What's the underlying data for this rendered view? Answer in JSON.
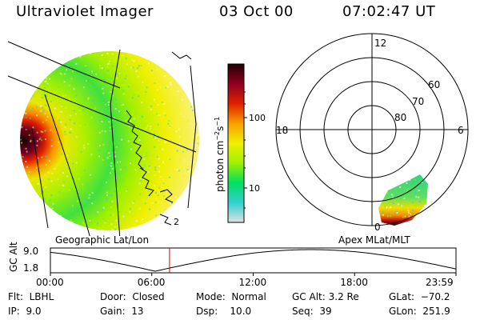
{
  "header": {
    "title": "Ultraviolet Imager",
    "date": "03 Oct 00",
    "time": "07:02:47 UT"
  },
  "colorbar": {
    "unit_label": "photon cm",
    "unit_exp1": "−2",
    "unit_s": "s",
    "unit_exp2": "−1",
    "ticks": [
      "100",
      "10"
    ],
    "colors": [
      "#e0e0e0",
      "#30d0d0",
      "#00e060",
      "#a0f000",
      "#f0f000",
      "#f8a000",
      "#e02000",
      "#900020",
      "#200000"
    ]
  },
  "polar": {
    "mlt_labels": [
      "12",
      "18",
      "6",
      "0"
    ],
    "lat_labels": [
      "60",
      "70",
      "80"
    ]
  },
  "coord_labels": {
    "left": "Geographic Lat/Lon",
    "right": "Apex MLat/MLT"
  },
  "timeline": {
    "axis_label": "GC Alt",
    "y_ticks": [
      "9.0",
      "1.8"
    ],
    "x_ticks": [
      "00:00",
      "06:00",
      "12:00",
      "18:00",
      "23:59"
    ],
    "marker_time_hours": 7.05
  },
  "footer": {
    "flt_label": "Flt:",
    "flt_value": "LBHL",
    "ip_label": "IP:",
    "ip_value": "9.0",
    "door_label": "Door:",
    "door_value": "Closed",
    "gain_label": "Gain:",
    "gain_value": "13",
    "mode_label": "Mode:",
    "mode_value": "Normal",
    "dsp_label": "Dsp:",
    "dsp_value": "10.0",
    "gcalt_label": "GC Alt:",
    "gcalt_value": "3.2 Re",
    "seq_label": "Seq:",
    "seq_value": "39",
    "glat_label": "GLat:",
    "glat_value": "−70.2",
    "glon_label": "GLon:",
    "glon_value": "251.9"
  }
}
